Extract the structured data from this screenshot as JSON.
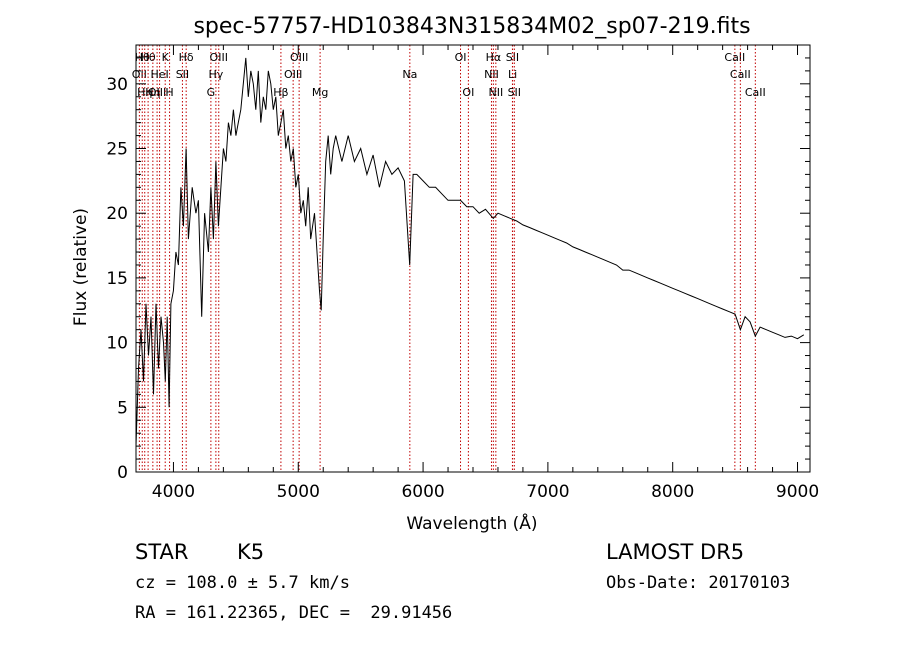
{
  "chart_data": {
    "type": "line",
    "title": "spec-57757-HD103843N315834M02_sp07-219.fits",
    "xlabel": "Wavelength (Å)",
    "ylabel": "Flux (relative)",
    "xlim": [
      3700,
      9100
    ],
    "ylim": [
      0,
      33
    ],
    "xticks": [
      4000,
      5000,
      6000,
      7000,
      8000,
      9000
    ],
    "yticks": [
      0,
      5,
      10,
      15,
      20,
      25,
      30
    ],
    "grid": false,
    "series": [
      {
        "points": [
          [
            3700,
            2
          ],
          [
            3720,
            8
          ],
          [
            3740,
            11
          ],
          [
            3760,
            7
          ],
          [
            3780,
            13
          ],
          [
            3800,
            9
          ],
          [
            3820,
            12
          ],
          [
            3840,
            6
          ],
          [
            3860,
            13
          ],
          [
            3880,
            8
          ],
          [
            3900,
            12
          ],
          [
            3920,
            10
          ],
          [
            3935,
            7
          ],
          [
            3950,
            12
          ],
          [
            3965,
            5
          ],
          [
            3980,
            13
          ],
          [
            4000,
            14
          ],
          [
            4020,
            17
          ],
          [
            4040,
            16
          ],
          [
            4060,
            22
          ],
          [
            4080,
            19
          ],
          [
            4101,
            25
          ],
          [
            4120,
            18
          ],
          [
            4150,
            22
          ],
          [
            4180,
            20
          ],
          [
            4200,
            21
          ],
          [
            4226,
            12
          ],
          [
            4250,
            20
          ],
          [
            4280,
            17
          ],
          [
            4300,
            22
          ],
          [
            4320,
            18
          ],
          [
            4340,
            24
          ],
          [
            4360,
            19
          ],
          [
            4380,
            22
          ],
          [
            4400,
            25
          ],
          [
            4420,
            24
          ],
          [
            4440,
            27
          ],
          [
            4460,
            26
          ],
          [
            4480,
            28
          ],
          [
            4500,
            26
          ],
          [
            4520,
            27
          ],
          [
            4540,
            28
          ],
          [
            4560,
            30
          ],
          [
            4580,
            32
          ],
          [
            4600,
            29
          ],
          [
            4620,
            31
          ],
          [
            4640,
            30
          ],
          [
            4660,
            28
          ],
          [
            4680,
            31
          ],
          [
            4700,
            27
          ],
          [
            4720,
            29
          ],
          [
            4740,
            28
          ],
          [
            4760,
            31
          ],
          [
            4780,
            30
          ],
          [
            4800,
            28
          ],
          [
            4820,
            29
          ],
          [
            4840,
            26
          ],
          [
            4861,
            27
          ],
          [
            4880,
            28
          ],
          [
            4900,
            25
          ],
          [
            4920,
            26
          ],
          [
            4940,
            24
          ],
          [
            4960,
            25
          ],
          [
            4980,
            22
          ],
          [
            5000,
            23
          ],
          [
            5020,
            20
          ],
          [
            5040,
            21
          ],
          [
            5060,
            19
          ],
          [
            5080,
            22
          ],
          [
            5100,
            18
          ],
          [
            5130,
            20
          ],
          [
            5150,
            17
          ],
          [
            5170,
            14
          ],
          [
            5184,
            12.5
          ],
          [
            5200,
            18
          ],
          [
            5220,
            24
          ],
          [
            5240,
            26
          ],
          [
            5260,
            23
          ],
          [
            5280,
            25
          ],
          [
            5300,
            26
          ],
          [
            5350,
            24
          ],
          [
            5400,
            26
          ],
          [
            5450,
            24
          ],
          [
            5500,
            25
          ],
          [
            5550,
            23
          ],
          [
            5600,
            24.5
          ],
          [
            5650,
            22
          ],
          [
            5700,
            24
          ],
          [
            5750,
            23
          ],
          [
            5800,
            23.5
          ],
          [
            5850,
            22.5
          ],
          [
            5893,
            16
          ],
          [
            5920,
            23
          ],
          [
            5950,
            23
          ],
          [
            6000,
            22.5
          ],
          [
            6050,
            22
          ],
          [
            6100,
            22
          ],
          [
            6150,
            21.5
          ],
          [
            6200,
            21
          ],
          [
            6250,
            21
          ],
          [
            6300,
            21
          ],
          [
            6350,
            20.5
          ],
          [
            6400,
            20.5
          ],
          [
            6450,
            20
          ],
          [
            6500,
            20.3
          ],
          [
            6563,
            19.6
          ],
          [
            6600,
            20
          ],
          [
            6650,
            19.8
          ],
          [
            6700,
            19.6
          ],
          [
            6750,
            19.4
          ],
          [
            6800,
            19.1
          ],
          [
            6850,
            18.9
          ],
          [
            6900,
            18.7
          ],
          [
            6950,
            18.5
          ],
          [
            7000,
            18.3
          ],
          [
            7050,
            18.1
          ],
          [
            7100,
            17.9
          ],
          [
            7150,
            17.7
          ],
          [
            7200,
            17.4
          ],
          [
            7250,
            17.2
          ],
          [
            7300,
            17
          ],
          [
            7350,
            16.8
          ],
          [
            7400,
            16.6
          ],
          [
            7450,
            16.4
          ],
          [
            7500,
            16.2
          ],
          [
            7550,
            16
          ],
          [
            7600,
            15.6
          ],
          [
            7650,
            15.6
          ],
          [
            7700,
            15.4
          ],
          [
            7750,
            15.2
          ],
          [
            7800,
            15
          ],
          [
            7850,
            14.8
          ],
          [
            7900,
            14.6
          ],
          [
            7950,
            14.4
          ],
          [
            8000,
            14.2
          ],
          [
            8050,
            14
          ],
          [
            8100,
            13.8
          ],
          [
            8150,
            13.6
          ],
          [
            8200,
            13.4
          ],
          [
            8250,
            13.2
          ],
          [
            8300,
            13
          ],
          [
            8350,
            12.8
          ],
          [
            8400,
            12.6
          ],
          [
            8450,
            12.4
          ],
          [
            8500,
            12.2
          ],
          [
            8542,
            11
          ],
          [
            8580,
            12
          ],
          [
            8620,
            11.6
          ],
          [
            8662,
            10.5
          ],
          [
            8700,
            11.2
          ],
          [
            8750,
            11
          ],
          [
            8800,
            10.8
          ],
          [
            8850,
            10.6
          ],
          [
            8900,
            10.4
          ],
          [
            8950,
            10.5
          ],
          [
            9000,
            10.3
          ],
          [
            9050,
            10.6
          ]
        ]
      }
    ],
    "lines": [
      {
        "w": 3727,
        "label": "OII",
        "row": 1
      },
      {
        "w": 3750,
        "label": "Hθ",
        "row": 0
      },
      {
        "w": 3770,
        "label": "Hη",
        "row": 2
      },
      {
        "w": 3797,
        "label": "Hθ",
        "row": 0
      },
      {
        "w": 3835,
        "label": "Hη",
        "row": 2
      },
      {
        "w": 3869,
        "label": "OIII",
        "row": 2
      },
      {
        "w": 3889,
        "label": "HeI",
        "row": 1
      },
      {
        "w": 3934,
        "label": "K",
        "row": 0
      },
      {
        "w": 3969,
        "label": "H",
        "row": 2
      },
      {
        "w": 4072,
        "label": "SII",
        "row": 1
      },
      {
        "w": 4102,
        "label": "Hδ",
        "row": 0
      },
      {
        "w": 4300,
        "label": "G",
        "row": 2
      },
      {
        "w": 4340,
        "label": "Hγ",
        "row": 1
      },
      {
        "w": 4363,
        "label": "OIII",
        "row": 0
      },
      {
        "w": 4861,
        "label": "Hβ",
        "row": 2
      },
      {
        "w": 4959,
        "label": "OIII",
        "row": 1
      },
      {
        "w": 5007,
        "label": "OIII",
        "row": 0
      },
      {
        "w": 5175,
        "label": "Mg",
        "row": 2
      },
      {
        "w": 5894,
        "label": "Na",
        "row": 1
      },
      {
        "w": 6300,
        "label": "OI",
        "row": 0
      },
      {
        "w": 6363,
        "label": "OI",
        "row": 2
      },
      {
        "w": 6548,
        "label": "NII",
        "row": 1
      },
      {
        "w": 6563,
        "label": "Hα",
        "row": 0
      },
      {
        "w": 6583,
        "label": "NII",
        "row": 2
      },
      {
        "w": 6716,
        "label": "SII",
        "row": 0
      },
      {
        "w": 6717,
        "label": "Li",
        "row": 1
      },
      {
        "w": 6731,
        "label": "SII",
        "row": 2
      },
      {
        "w": 8498,
        "label": "CaII",
        "row": 0
      },
      {
        "w": 8542,
        "label": "CaII",
        "row": 1
      },
      {
        "w": 8662,
        "label": "CaII",
        "row": 2
      }
    ]
  },
  "footer": {
    "class_label": "STAR",
    "subclass": "K5",
    "survey": "LAMOST DR5",
    "cz": "cz = 108.0 ± 5.7 km/s",
    "obs_date": "Obs-Date: 20170103",
    "coords": "RA = 161.22365, DEC =  29.91456"
  },
  "colors": {
    "line_marker": "#c00000",
    "spectrum": "#000000"
  }
}
